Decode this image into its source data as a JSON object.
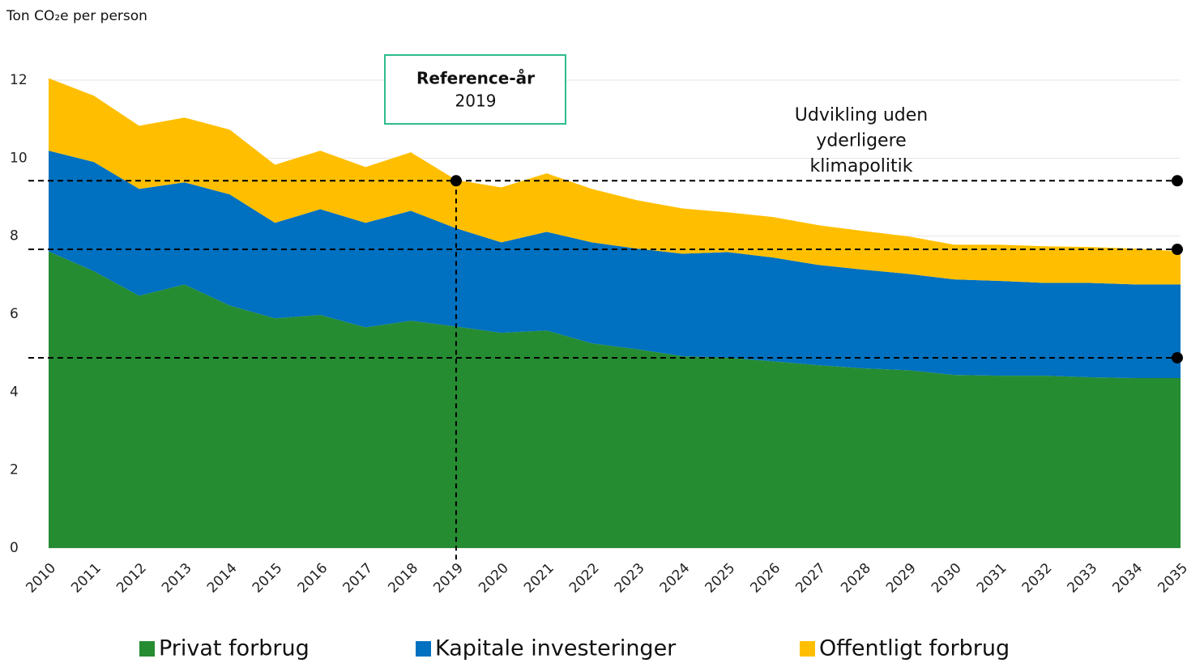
{
  "chart_data": {
    "type": "stacked_area",
    "y_axis_label": "Ton CO₂e per person",
    "categories": [
      "2010",
      "2011",
      "2012",
      "2013",
      "2014",
      "2015",
      "2016",
      "2017",
      "2018",
      "2019",
      "2020",
      "2021",
      "2022",
      "2023",
      "2024",
      "2025",
      "2026",
      "2027",
      "2028",
      "2029",
      "2030",
      "2031",
      "2032",
      "2033",
      "2034",
      "2035"
    ],
    "series": [
      {
        "name": "Privat forbrug",
        "color": "#268c32",
        "values": [
          7.61,
          7.1,
          6.47,
          6.76,
          6.22,
          5.89,
          5.98,
          5.66,
          5.83,
          5.68,
          5.52,
          5.58,
          5.25,
          5.1,
          4.92,
          4.88,
          4.79,
          4.69,
          4.61,
          4.56,
          4.44,
          4.42,
          4.42,
          4.38,
          4.36,
          4.36
        ]
      },
      {
        "name": "Kapitale investeringer",
        "color": "#0070c0",
        "values": [
          2.58,
          2.8,
          2.74,
          2.62,
          2.85,
          2.45,
          2.71,
          2.68,
          2.82,
          2.52,
          2.32,
          2.53,
          2.59,
          2.58,
          2.63,
          2.71,
          2.66,
          2.57,
          2.53,
          2.47,
          2.45,
          2.43,
          2.38,
          2.42,
          2.4,
          2.4
        ]
      },
      {
        "name": "Offentligt forbrug",
        "color": "#ffbf00",
        "values": [
          1.86,
          1.7,
          1.62,
          1.66,
          1.66,
          1.49,
          1.5,
          1.43,
          1.5,
          1.24,
          1.41,
          1.5,
          1.37,
          1.24,
          1.16,
          1.02,
          1.04,
          1.02,
          0.99,
          0.96,
          0.89,
          0.93,
          0.94,
          0.92,
          0.92,
          0.85
        ]
      }
    ],
    "ylim": [
      0,
      12
    ],
    "yticks": [
      0,
      2,
      4,
      6,
      8,
      10,
      12
    ],
    "grid": true,
    "reference_lines": [
      9.42,
      7.66,
      4.88
    ],
    "annotation": {
      "label": "Reference-år",
      "year": "2019"
    },
    "scenario_label": [
      "Udvikling uden",
      "yderligere",
      "klimapolitik"
    ]
  }
}
